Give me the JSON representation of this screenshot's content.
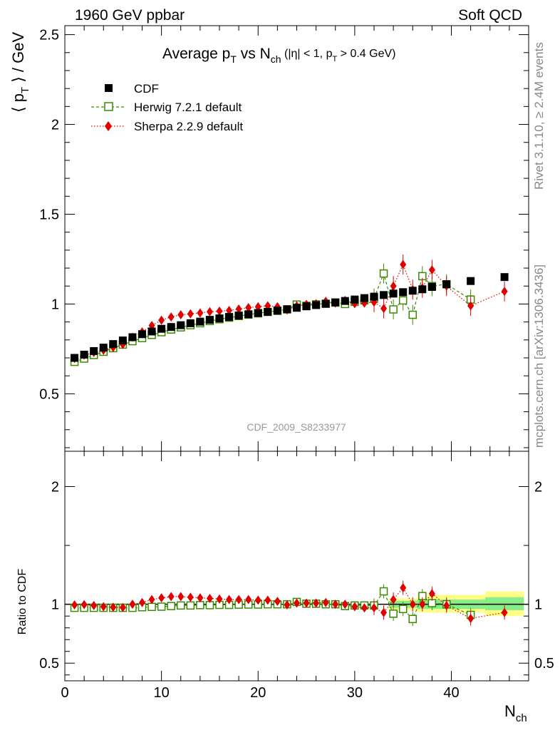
{
  "header": {
    "left": "1960 GeV ppbar",
    "right": "Soft QCD"
  },
  "side_text": {
    "rivet": "Rivet 3.1.10, ≥ 2.4M events",
    "mcplots": "mcplots.cern.ch [arXiv:1306.3436]"
  },
  "chart_data": {
    "type": "scatter",
    "title": "Average p_T vs N_ch (|η| < 1, p_T > 0.4 GeV)",
    "title_parts": {
      "main": "Average p",
      "main_sub": "T",
      "vs": " vs N",
      "vs_sub": "ch",
      "cond1": " (|η| < 1, p",
      "cond1_sub": "T",
      "cond2": " > 0.4 GeV)"
    },
    "analysis_id": "CDF_2009_S8233977",
    "ylabel_main": "⟨ p_T ⟩ / GeV",
    "ylabel_ratio": "Ratio to CDF",
    "xlabel": "N_ch",
    "xlim": [
      0,
      48
    ],
    "ylim_main": [
      0.18,
      2.55
    ],
    "ylim_ratio": [
      0.35,
      2.3
    ],
    "main_yticks": [
      "0.5",
      "1",
      "1.5",
      "2",
      "2.5"
    ],
    "ratio_yticks": [
      "0.5",
      "1",
      "2"
    ],
    "xticks": [
      "0",
      "10",
      "20",
      "30",
      "40"
    ],
    "legend_position": "top-left",
    "series": [
      {
        "name": "CDF",
        "color": "#000000",
        "marker": "square-filled",
        "x": [
          1,
          2,
          3,
          4,
          5,
          6,
          7,
          8,
          9,
          10,
          11,
          12,
          13,
          14,
          15,
          16,
          17,
          18,
          19,
          20,
          21,
          22,
          23,
          24,
          25,
          26,
          27,
          28,
          29,
          30,
          31,
          32,
          33,
          34,
          35,
          36,
          37,
          38,
          39.5,
          42,
          45.5
        ],
        "y": [
          0.7,
          0.718,
          0.738,
          0.757,
          0.777,
          0.797,
          0.815,
          0.832,
          0.847,
          0.862,
          0.872,
          0.882,
          0.893,
          0.902,
          0.912,
          0.92,
          0.928,
          0.936,
          0.943,
          0.95,
          0.956,
          0.963,
          0.971,
          0.979,
          0.987,
          0.994,
          1.001,
          1.009,
          1.017,
          1.025,
          1.033,
          1.041,
          1.05,
          1.058,
          1.066,
          1.074,
          1.082,
          1.095,
          1.11,
          1.128,
          1.15
        ]
      },
      {
        "name": "Herwig 7.2.1 default",
        "color": "#3a8a00",
        "marker": "square-open",
        "line": "dashed",
        "x": [
          1,
          2,
          3,
          4,
          5,
          6,
          7,
          8,
          9,
          10,
          11,
          12,
          13,
          14,
          15,
          16,
          17,
          18,
          19,
          20,
          21,
          22,
          23,
          24,
          25,
          26,
          27,
          28,
          29,
          30,
          31,
          32,
          33,
          34,
          35,
          36,
          37,
          38,
          39.5,
          42
        ],
        "y": [
          0.678,
          0.696,
          0.716,
          0.734,
          0.754,
          0.774,
          0.793,
          0.81,
          0.828,
          0.843,
          0.858,
          0.87,
          0.882,
          0.893,
          0.905,
          0.915,
          0.924,
          0.933,
          0.941,
          0.948,
          0.956,
          0.962,
          0.97,
          0.997,
          0.99,
          0.998,
          1.002,
          1.008,
          1.0,
          1.012,
          1.02,
          1.03,
          1.17,
          0.97,
          1.02,
          0.94,
          1.155,
          1.1,
          1.11,
          1.025
        ]
      },
      {
        "name": "Sherpa 2.2.9 default",
        "color": "#e00000",
        "marker": "diamond",
        "line": "dotted",
        "x": [
          1,
          2,
          3,
          4,
          5,
          6,
          7,
          8,
          9,
          10,
          11,
          12,
          13,
          14,
          15,
          16,
          17,
          18,
          19,
          20,
          21,
          22,
          23,
          24,
          25,
          26,
          27,
          28,
          29,
          30,
          31,
          32,
          33,
          34,
          35,
          36,
          37,
          38,
          39.5,
          42,
          45.5
        ],
        "y": [
          0.697,
          0.715,
          0.73,
          0.742,
          0.758,
          0.775,
          0.815,
          0.845,
          0.88,
          0.91,
          0.928,
          0.94,
          0.945,
          0.95,
          0.957,
          0.96,
          0.964,
          0.972,
          0.98,
          0.985,
          0.99,
          0.985,
          0.967,
          0.99,
          0.998,
          1.002,
          1.015,
          1.005,
          1.02,
          1.002,
          1.005,
          1.01,
          0.975,
          1.1,
          1.22,
          1.08,
          1.09,
          1.19,
          1.1,
          0.99,
          1.07
        ]
      }
    ],
    "ratio_series": [
      {
        "name": "Herwig 7.2.1 default",
        "x": [
          1,
          2,
          3,
          4,
          5,
          6,
          7,
          8,
          9,
          10,
          11,
          12,
          13,
          14,
          15,
          16,
          17,
          18,
          19,
          20,
          21,
          22,
          23,
          24,
          25,
          26,
          27,
          28,
          29,
          30,
          31,
          32,
          33,
          34,
          35,
          36,
          37,
          38,
          39.5,
          42
        ],
        "y": [
          0.97,
          0.97,
          0.97,
          0.97,
          0.97,
          0.97,
          0.97,
          0.975,
          0.978,
          0.98,
          0.985,
          0.99,
          0.99,
          0.993,
          0.993,
          0.995,
          0.995,
          0.997,
          0.998,
          0.998,
          1.0,
          1.0,
          1.0,
          1.02,
          1.005,
          1.005,
          1.0,
          1.0,
          0.985,
          0.99,
          0.99,
          0.99,
          1.11,
          0.92,
          0.96,
          0.875,
          1.07,
          1.01,
          1.0,
          0.91
        ]
      },
      {
        "name": "Sherpa 2.2.9 default",
        "x": [
          1,
          2,
          3,
          4,
          5,
          6,
          7,
          8,
          9,
          10,
          11,
          12,
          13,
          14,
          15,
          16,
          17,
          18,
          19,
          20,
          21,
          22,
          23,
          24,
          25,
          26,
          27,
          28,
          29,
          30,
          31,
          32,
          33,
          34,
          35,
          36,
          37,
          38,
          39.5,
          42,
          45.5
        ],
        "y": [
          0.995,
          0.997,
          0.99,
          0.98,
          0.975,
          0.973,
          1.0,
          1.015,
          1.04,
          1.055,
          1.065,
          1.065,
          1.06,
          1.055,
          1.05,
          1.045,
          1.04,
          1.04,
          1.04,
          1.035,
          1.035,
          1.025,
          0.995,
          1.01,
          1.01,
          1.01,
          1.015,
          1.0,
          1.0,
          0.98,
          0.97,
          0.97,
          0.93,
          1.04,
          1.14,
          1.0,
          1.0,
          1.09,
          0.99,
          0.88,
          0.93
        ]
      }
    ],
    "cdf_uncertainty_bands": [
      {
        "x_range": [
          33.5,
          36.5
        ],
        "yellow": [
          0.95,
          1.05
        ],
        "green": [
          0.97,
          1.03
        ]
      },
      {
        "x_range": [
          36.5,
          43.5
        ],
        "yellow": [
          0.93,
          1.08
        ],
        "green": [
          0.96,
          1.04
        ]
      },
      {
        "x_range": [
          43.5,
          47.5
        ],
        "yellow": [
          0.9,
          1.11
        ],
        "green": [
          0.95,
          1.06
        ]
      }
    ]
  }
}
